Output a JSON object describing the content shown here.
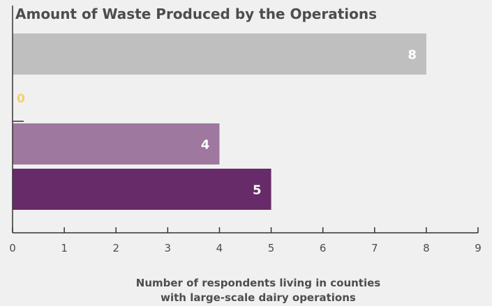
{
  "chart_data": {
    "type": "bar",
    "orientation": "horizontal",
    "title": "Amount of Waste Produced by the Operations",
    "xlabel": [
      "Number of respondents living in counties",
      "with large-scale dairy operations"
    ],
    "ylabel": "",
    "xlim": [
      0,
      9
    ],
    "xticks": [
      "0",
      "1",
      "2",
      "3",
      "4",
      "5",
      "6",
      "7",
      "8",
      "9"
    ],
    "grid": false,
    "legend": "none",
    "bars": [
      {
        "value": 8,
        "label": "8",
        "color": "#bfbfbf",
        "label_color": "#ffffff"
      },
      {
        "value": 0,
        "label": "0",
        "color": "#f0d060",
        "label_color": "#f2d16b"
      },
      {
        "value": 4,
        "label": "4",
        "color": "#9e789f",
        "label_color": "#ffffff"
      },
      {
        "value": 5,
        "label": "5",
        "color": "#672b69",
        "label_color": "#ffffff"
      }
    ],
    "colors": {
      "background": "#f0f0f0",
      "axis": "#333333",
      "text": "#4d4d4d"
    }
  }
}
